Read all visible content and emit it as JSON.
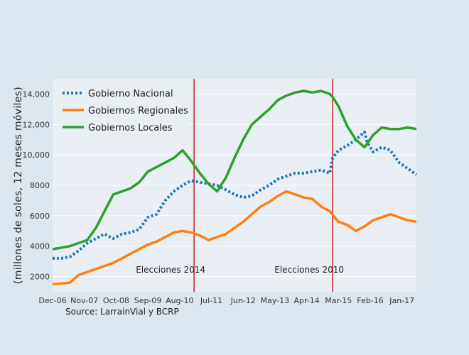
{
  "chart_data": {
    "type": "line",
    "ylabel": "(millones de soles, 12 meses móviles)",
    "source": "Source: LarrainVial y BCRP",
    "x_ticks": [
      "Dec-06",
      "Nov-07",
      "Oct-08",
      "Sep-09",
      "Aug-10",
      "Jul-11",
      "Jun-12",
      "May-13",
      "Apr-14",
      "Mar-15",
      "Feb-16",
      "Jan-17"
    ],
    "y_ticks": [
      "2000",
      "4000",
      "6000",
      "8000",
      "10,000",
      "12,000",
      "14,000"
    ],
    "ylim": [
      1000,
      15000
    ],
    "legend_placement": "top-left",
    "grid": true,
    "series": [
      {
        "name": "Gobierno Nacional",
        "color": "#1f77b4",
        "style": "dotted",
        "x": [
          "2006-12",
          "2007-03",
          "2007-06",
          "2007-09",
          "2007-12",
          "2008-03",
          "2008-06",
          "2008-09",
          "2008-12",
          "2009-03",
          "2009-06",
          "2009-09",
          "2009-12",
          "2010-03",
          "2010-06",
          "2010-09",
          "2010-12",
          "2011-03",
          "2011-06",
          "2011-09",
          "2011-12",
          "2012-03",
          "2012-06",
          "2012-09",
          "2012-12",
          "2013-03",
          "2013-06",
          "2013-09",
          "2013-12",
          "2014-03",
          "2014-06",
          "2014-09",
          "2014-12",
          "2015-01",
          "2015-03",
          "2015-06",
          "2015-09",
          "2015-12",
          "2016-01",
          "2016-03",
          "2016-06",
          "2016-09",
          "2016-12",
          "2017-03",
          "2017-06"
        ],
        "y": [
          3200,
          3200,
          3300,
          3700,
          4200,
          4500,
          4800,
          4500,
          4800,
          4900,
          5100,
          5900,
          6100,
          7000,
          7600,
          8000,
          8300,
          8200,
          8100,
          8000,
          7700,
          7400,
          7200,
          7300,
          7700,
          8000,
          8400,
          8600,
          8800,
          8800,
          8900,
          9000,
          8800,
          9800,
          10300,
          10600,
          11000,
          11500,
          10800,
          10200,
          10500,
          10300,
          9500,
          9100,
          8700
        ]
      },
      {
        "name": "Gobiernos Regionales",
        "color": "#ff7f0e",
        "style": "solid",
        "x": [
          "2006-12",
          "2007-03",
          "2007-06",
          "2007-09",
          "2007-12",
          "2008-03",
          "2008-06",
          "2008-09",
          "2008-12",
          "2009-03",
          "2009-06",
          "2009-09",
          "2009-12",
          "2010-03",
          "2010-06",
          "2010-09",
          "2010-12",
          "2011-03",
          "2011-06",
          "2011-09",
          "2011-12",
          "2012-03",
          "2012-06",
          "2012-09",
          "2012-12",
          "2013-03",
          "2013-06",
          "2013-09",
          "2013-12",
          "2014-03",
          "2014-06",
          "2014-09",
          "2014-12",
          "2015-03",
          "2015-06",
          "2015-09",
          "2015-12",
          "2016-03",
          "2016-06",
          "2016-09",
          "2016-12",
          "2017-03",
          "2017-06"
        ],
        "y": [
          1500,
          1550,
          1600,
          2100,
          2300,
          2500,
          2700,
          2900,
          3200,
          3500,
          3800,
          4100,
          4300,
          4600,
          4900,
          5000,
          4900,
          4700,
          4400,
          4600,
          4800,
          5200,
          5600,
          6100,
          6600,
          6900,
          7300,
          7600,
          7400,
          7200,
          7100,
          6600,
          6300,
          5600,
          5400,
          5000,
          5300,
          5700,
          5900,
          6100,
          5900,
          5700,
          5600
        ]
      },
      {
        "name": "Gobiernos Locales",
        "color": "#2ca02c",
        "style": "solid",
        "x": [
          "2006-12",
          "2007-03",
          "2007-06",
          "2007-09",
          "2007-12",
          "2008-03",
          "2008-06",
          "2008-09",
          "2008-12",
          "2009-03",
          "2009-06",
          "2009-09",
          "2009-12",
          "2010-03",
          "2010-06",
          "2010-09",
          "2010-12",
          "2011-03",
          "2011-06",
          "2011-09",
          "2011-12",
          "2012-03",
          "2012-06",
          "2012-09",
          "2012-12",
          "2013-03",
          "2013-06",
          "2013-09",
          "2013-12",
          "2014-03",
          "2014-06",
          "2014-09",
          "2014-12",
          "2015-01",
          "2015-03",
          "2015-06",
          "2015-09",
          "2015-12",
          "2016-03",
          "2016-06",
          "2016-09",
          "2016-12",
          "2017-03",
          "2017-06"
        ],
        "y": [
          3800,
          3900,
          4000,
          4200,
          4400,
          5200,
          6300,
          7400,
          7600,
          7800,
          8200,
          8900,
          9200,
          9500,
          9800,
          10300,
          9600,
          8800,
          8100,
          7600,
          8500,
          9800,
          11000,
          12000,
          12500,
          13000,
          13600,
          13900,
          14100,
          14200,
          14100,
          14200,
          14000,
          13800,
          13200,
          11900,
          11000,
          10500,
          11300,
          11800,
          11700,
          11700,
          11800,
          11700
        ]
      }
    ],
    "annotations": [
      {
        "label": "Elecciones 2014",
        "x": "2011-01",
        "color": "#cc2222"
      },
      {
        "label": "Elecciones 2010",
        "x": "2015-01",
        "color": "#cc2222"
      }
    ]
  }
}
